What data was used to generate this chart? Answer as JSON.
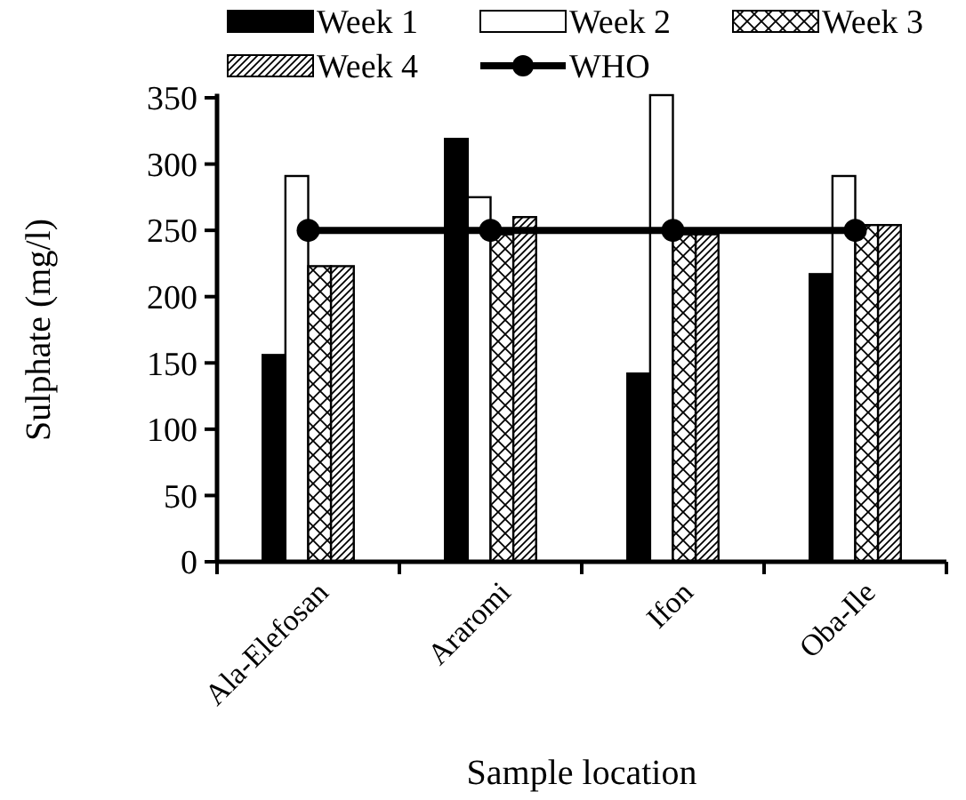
{
  "chart_data": {
    "type": "bar",
    "xlabel": "Sample location",
    "ylabel": "Sulphate (mg/l)",
    "categories": [
      "Ala-Elefosan",
      "Araromi",
      "Ifon",
      "Oba-Ile"
    ],
    "series": [
      {
        "name": "Week 1",
        "color": "#000000",
        "values": [
          156,
          319,
          142,
          217
        ]
      },
      {
        "name": "Week 2",
        "color": "#ffffff",
        "values": [
          291,
          275,
          352,
          291
        ]
      },
      {
        "name": "Week 3",
        "color": "#000000",
        "values": [
          223,
          247,
          247,
          254
        ]
      },
      {
        "name": "Week 4",
        "color": "#000000",
        "values": [
          223,
          260,
          247,
          254
        ]
      },
      {
        "name": "WHO",
        "type": "line",
        "color": "#000000",
        "values": [
          250,
          250,
          250,
          250
        ]
      }
    ],
    "ylim": [
      0,
      353
    ],
    "yticks": [
      0,
      50,
      100,
      150,
      200,
      250,
      300,
      350
    ],
    "grid": false,
    "legend": "top",
    "marker": "circle",
    "line_style": "solid"
  }
}
